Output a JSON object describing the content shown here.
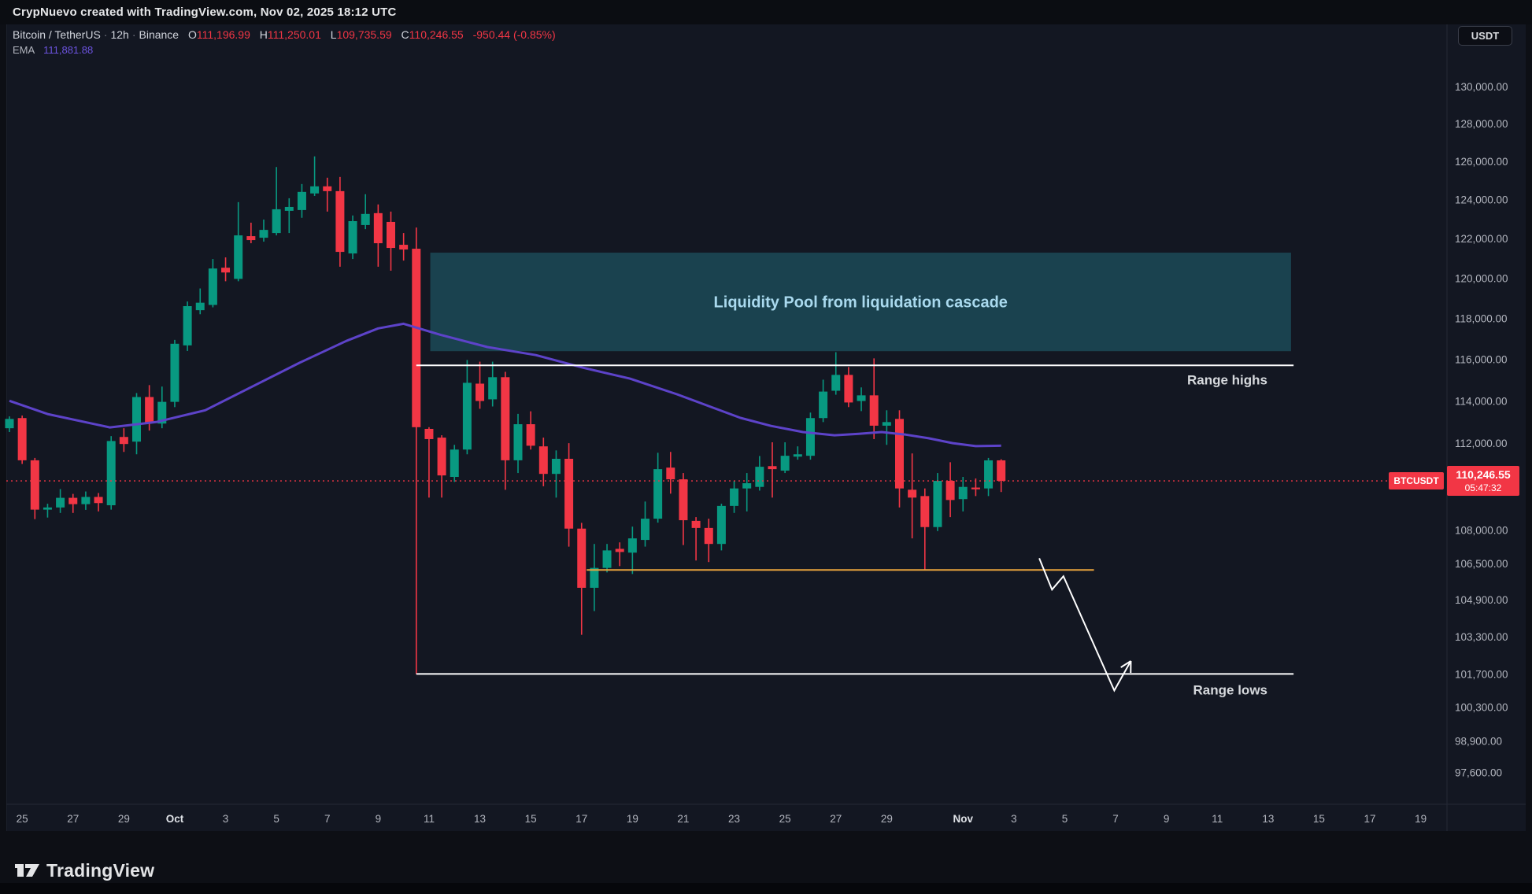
{
  "topbar": {
    "attribution": "CrypNuevo created with TradingView.com, Nov 02, 2025 18:12 UTC"
  },
  "legend": {
    "symbol": "Bitcoin / TetherUS",
    "interval": "12h",
    "exchange": "Binance",
    "sep": "·",
    "ohlc": {
      "o_label": "O",
      "o": "111,196.99",
      "h_label": "H",
      "h": "111,250.01",
      "l_label": "L",
      "l": "109,735.59",
      "c_label": "C",
      "c": "110,246.55",
      "change": "-950.44 (-0.85%)"
    },
    "indicator": {
      "name": "EMA",
      "value": "111,881.88"
    }
  },
  "currency_button": "USDT",
  "price_scale": {
    "labels": [
      [
        "130,000.00",
        130000
      ],
      [
        "128,000.00",
        128000
      ],
      [
        "126,000.00",
        126000
      ],
      [
        "124,000.00",
        124000
      ],
      [
        "122,000.00",
        122000
      ],
      [
        "120,000.00",
        120000
      ],
      [
        "118,000.00",
        118000
      ],
      [
        "116,000.00",
        116000
      ],
      [
        "114,000.00",
        114000
      ],
      [
        "112,000.00",
        112000
      ],
      [
        "108,000.00",
        108000
      ],
      [
        "106,500.00",
        106500
      ],
      [
        "104,900.00",
        104900
      ],
      [
        "103,300.00",
        103300
      ],
      [
        "101,700.00",
        101700
      ],
      [
        "100,300.00",
        100300
      ],
      [
        "98,900.00",
        98900
      ],
      [
        "97,600.00",
        97600
      ]
    ],
    "badge": {
      "symbol": "BTCUSDT",
      "price": "110,246.55",
      "countdown": "05:47:32",
      "value": 110246.55
    }
  },
  "time_scale": {
    "ticks": [
      {
        "label": "25",
        "d": 0
      },
      {
        "label": "27",
        "d": 2
      },
      {
        "label": "29",
        "d": 4
      },
      {
        "label": "Oct",
        "d": 6,
        "b": 1
      },
      {
        "label": "3",
        "d": 8
      },
      {
        "label": "5",
        "d": 10
      },
      {
        "label": "7",
        "d": 12
      },
      {
        "label": "9",
        "d": 14
      },
      {
        "label": "11",
        "d": 16
      },
      {
        "label": "13",
        "d": 18
      },
      {
        "label": "15",
        "d": 20
      },
      {
        "label": "17",
        "d": 22
      },
      {
        "label": "19",
        "d": 24
      },
      {
        "label": "21",
        "d": 26
      },
      {
        "label": "23",
        "d": 28
      },
      {
        "label": "25",
        "d": 30
      },
      {
        "label": "27",
        "d": 32
      },
      {
        "label": "29",
        "d": 34
      },
      {
        "label": "Nov",
        "d": 37,
        "b": 1
      },
      {
        "label": "3",
        "d": 39
      },
      {
        "label": "5",
        "d": 41
      },
      {
        "label": "7",
        "d": 43
      },
      {
        "label": "9",
        "d": 45
      },
      {
        "label": "11",
        "d": 47
      },
      {
        "label": "13",
        "d": 49
      },
      {
        "label": "15",
        "d": 51
      },
      {
        "label": "17",
        "d": 53
      },
      {
        "label": "19",
        "d": 55
      }
    ]
  },
  "logo": {
    "wordmark": "TradingView"
  },
  "colors": {
    "up": "#089981",
    "down": "#f23645",
    "ema": "#5d43c9",
    "box_fill": "#1a4552",
    "box_text": "#a9d9ee",
    "orange": "#e8a33d",
    "white_line": "#ffffff",
    "axis_text": "#b2b5be",
    "axis_text_bold": "#dfe2e7",
    "label_text": "#d6d9dd",
    "separator": "#242836"
  },
  "chart_data": {
    "type": "candlestick",
    "title": "Bitcoin / TetherUS 12h Binance",
    "scale": "log",
    "ylim": [
      96310,
      133420
    ],
    "grid": false,
    "columns": [
      "time",
      "open",
      "high",
      "low",
      "close"
    ],
    "candles": [
      [
        "09-24 12:00",
        112700,
        113260,
        112520,
        113140
      ],
      [
        "09-25 00:00",
        113180,
        113300,
        111030,
        111200
      ],
      [
        "09-25 12:00",
        111200,
        111310,
        108500,
        108930
      ],
      [
        "09-26 00:00",
        108930,
        109200,
        108570,
        109030
      ],
      [
        "09-26 12:00",
        109030,
        109870,
        108780,
        109470
      ],
      [
        "09-27 00:00",
        109470,
        109650,
        108780,
        109180
      ],
      [
        "09-27 12:00",
        109180,
        109760,
        108920,
        109510
      ],
      [
        "09-28 00:00",
        109510,
        109690,
        108850,
        109230
      ],
      [
        "09-28 12:00",
        109130,
        112330,
        108930,
        112100
      ],
      [
        "09-29 00:00",
        112290,
        112700,
        111590,
        111960
      ],
      [
        "09-29 12:00",
        112070,
        114370,
        111480,
        114180
      ],
      [
        "09-30 00:00",
        114180,
        114750,
        112590,
        112960
      ],
      [
        "09-30 12:00",
        112920,
        114680,
        112700,
        113950
      ],
      [
        "10-01 00:00",
        113950,
        116940,
        113700,
        116750
      ],
      [
        "10-01 12:00",
        116670,
        118830,
        116400,
        118600
      ],
      [
        "10-02 00:00",
        118400,
        119480,
        118200,
        118770
      ],
      [
        "10-02 12:00",
        118660,
        120960,
        118540,
        120480
      ],
      [
        "10-03 00:00",
        120520,
        121040,
        119840,
        120280
      ],
      [
        "10-03 12:00",
        119960,
        123870,
        119840,
        122160
      ],
      [
        "10-04 00:00",
        122120,
        122810,
        121760,
        121920
      ],
      [
        "10-04 12:00",
        122040,
        122970,
        121840,
        122440
      ],
      [
        "10-05 00:00",
        122280,
        125700,
        122160,
        123500
      ],
      [
        "10-05 12:00",
        123420,
        124070,
        122280,
        123620
      ],
      [
        "10-06 00:00",
        123460,
        124810,
        123060,
        124400
      ],
      [
        "10-06 12:00",
        124320,
        126260,
        124190,
        124690
      ],
      [
        "10-07 00:00",
        124690,
        125140,
        123380,
        124440
      ],
      [
        "10-07 12:00",
        124440,
        125180,
        120570,
        121320
      ],
      [
        "10-08 00:00",
        121240,
        123180,
        120960,
        122890
      ],
      [
        "10-08 12:00",
        122690,
        124280,
        122480,
        123260
      ],
      [
        "10-09 00:00",
        123300,
        123750,
        120570,
        121760
      ],
      [
        "10-09 12:00",
        122850,
        123380,
        120370,
        121520
      ],
      [
        "10-10 00:00",
        121680,
        122280,
        120880,
        121440
      ],
      [
        "10-10 12:00",
        121480,
        122560,
        101700,
        112750
      ],
      [
        "10-11 00:00",
        112670,
        112750,
        109480,
        112190
      ],
      [
        "10-11 12:00",
        112260,
        112370,
        109480,
        110500
      ],
      [
        "10-12 00:00",
        110430,
        111920,
        110200,
        111700
      ],
      [
        "10-12 12:00",
        111700,
        115960,
        111480,
        114860
      ],
      [
        "10-13 00:00",
        114820,
        115880,
        113620,
        113990
      ],
      [
        "10-13 12:00",
        114070,
        115880,
        113730,
        115130
      ],
      [
        "10-14 00:00",
        115130,
        115390,
        109840,
        111200
      ],
      [
        "10-14 12:00",
        111200,
        113380,
        110610,
        112890
      ],
      [
        "10-15 00:00",
        112890,
        113500,
        111700,
        111880
      ],
      [
        "10-15 12:00",
        111850,
        112260,
        110000,
        110570
      ],
      [
        "10-16 00:00",
        110570,
        111660,
        109480,
        111270
      ],
      [
        "10-16 12:00",
        111270,
        112000,
        107260,
        108070
      ],
      [
        "10-17 00:00",
        108070,
        108330,
        103380,
        105430
      ],
      [
        "10-17 12:00",
        105430,
        107380,
        104410,
        106310
      ],
      [
        "10-18 00:00",
        106310,
        107380,
        106110,
        107090
      ],
      [
        "10-18 12:00",
        107160,
        107450,
        106390,
        107020
      ],
      [
        "10-19 00:00",
        106990,
        108160,
        106040,
        107630
      ],
      [
        "10-19 12:00",
        107560,
        109300,
        107260,
        108520
      ],
      [
        "10-20 00:00",
        108520,
        111550,
        108340,
        110790
      ],
      [
        "10-20 12:00",
        110860,
        111590,
        109660,
        110320
      ],
      [
        "10-21 00:00",
        110320,
        110610,
        107330,
        108450
      ],
      [
        "10-21 12:00",
        108420,
        108590,
        106640,
        108100
      ],
      [
        "10-22 00:00",
        108100,
        108520,
        106570,
        107380
      ],
      [
        "10-22 12:00",
        107380,
        109200,
        107090,
        109100
      ],
      [
        "10-23 00:00",
        109100,
        110250,
        108780,
        109900
      ],
      [
        "10-23 12:00",
        109900,
        110610,
        108850,
        110140
      ],
      [
        "10-24 00:00",
        109970,
        111400,
        109800,
        110900
      ],
      [
        "10-24 12:00",
        110930,
        112040,
        109480,
        110790
      ],
      [
        "10-25 00:00",
        110720,
        112040,
        110610,
        111410
      ],
      [
        "10-25 12:00",
        111370,
        111850,
        111230,
        111480
      ],
      [
        "10-26 00:00",
        111410,
        113440,
        111230,
        113180
      ],
      [
        "10-26 12:00",
        113180,
        115010,
        112990,
        114440
      ],
      [
        "10-27 00:00",
        114480,
        116340,
        114290,
        115240
      ],
      [
        "10-27 12:00",
        115240,
        115620,
        113700,
        113920
      ],
      [
        "10-28 00:00",
        113990,
        114640,
        113510,
        114260
      ],
      [
        "10-28 12:00",
        114260,
        116040,
        112190,
        112820
      ],
      [
        "10-29 00:00",
        112820,
        113550,
        111920,
        112990
      ],
      [
        "10-29 12:00",
        113140,
        113550,
        109030,
        109900
      ],
      [
        "10-30 00:00",
        109840,
        111520,
        107630,
        109480
      ],
      [
        "10-30 12:00",
        109550,
        109900,
        106210,
        108140
      ],
      [
        "10-31 00:00",
        108140,
        110610,
        107960,
        110250
      ],
      [
        "10-31 12:00",
        110250,
        111110,
        108590,
        109370
      ],
      [
        "11-01 00:00",
        109410,
        110430,
        108850,
        109970
      ],
      [
        "11-01 12:00",
        109940,
        110360,
        109550,
        109860
      ],
      [
        "11-02 00:00",
        109900,
        111310,
        109550,
        111196.99
      ],
      [
        "11-02 12:00",
        111196.99,
        111250.01,
        109735.59,
        110246.55
      ]
    ],
    "ema_series": {
      "name": "EMA",
      "points": [
        [
          0,
          114000
        ],
        [
          3,
          113370
        ],
        [
          7.9,
          112740
        ],
        [
          11.6,
          113000
        ],
        [
          15.4,
          113550
        ],
        [
          19.1,
          114680
        ],
        [
          22.8,
          115820
        ],
        [
          26.5,
          116890
        ],
        [
          29,
          117500
        ],
        [
          31,
          117730
        ],
        [
          33.9,
          117190
        ],
        [
          37.6,
          116590
        ],
        [
          41.4,
          116200
        ],
        [
          45.1,
          115590
        ],
        [
          48.8,
          115060
        ],
        [
          52.5,
          114310
        ],
        [
          55,
          113750
        ],
        [
          57.5,
          113190
        ],
        [
          59.9,
          112810
        ],
        [
          62.4,
          112520
        ],
        [
          64.9,
          112370
        ],
        [
          66.8,
          112440
        ],
        [
          68.6,
          112520
        ],
        [
          70.5,
          112400
        ],
        [
          72.3,
          112230
        ],
        [
          74.2,
          112000
        ],
        [
          76,
          111860
        ],
        [
          78,
          111881.88
        ]
      ]
    },
    "annotations": {
      "liquidity_box": {
        "label": "Liquidity Pool from liquidation cascade",
        "i_start": 33.1,
        "i_end": 100.8,
        "price_top": 121280,
        "price_bottom": 116390
      },
      "range_high_line": {
        "label": "Range highs",
        "price": 115700,
        "i_start": 32,
        "i_end": 101
      },
      "range_low_line": {
        "label": "Range lows",
        "price": 101700,
        "i_start": 32,
        "i_end": 101
      },
      "orange_ray": {
        "price": 106220,
        "i_start": 45.4,
        "i_end": 85.3
      },
      "arrow": {
        "points": [
          [
            81,
            106740
          ],
          [
            82,
            105350
          ],
          [
            82.9,
            105940
          ],
          [
            86.9,
            101000
          ],
          [
            88.2,
            102250
          ]
        ]
      },
      "current_price_line": {
        "price": 110246.55
      }
    }
  }
}
